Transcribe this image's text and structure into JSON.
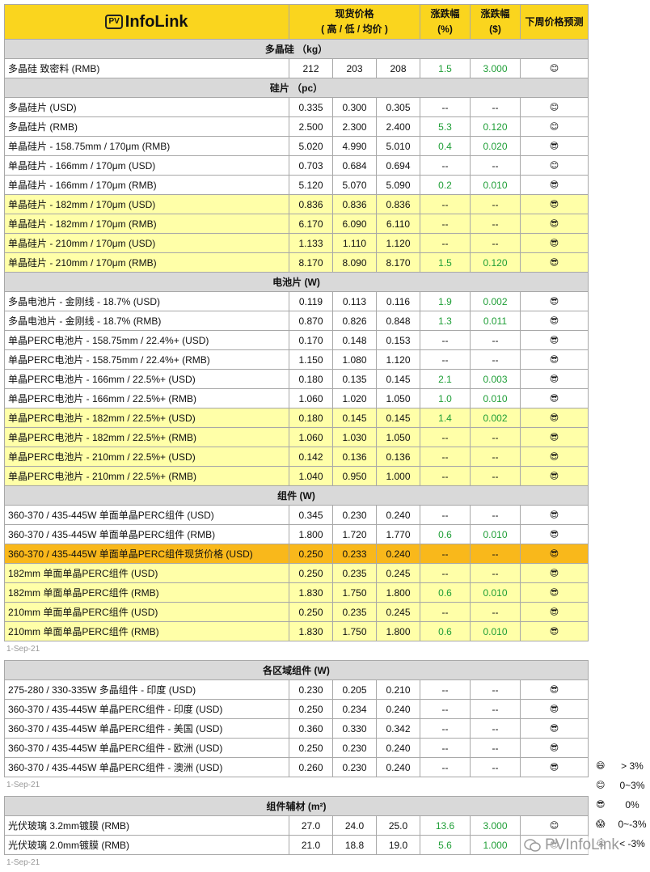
{
  "header": {
    "logo_pv": "PV",
    "logo_text": "InfoLink",
    "price": "现货价格",
    "price_sub": "( 高 / 低 / 均价 )",
    "pct": "涨跌幅",
    "pct_unit": "(%)",
    "abs": "涨跌幅",
    "abs_unit": "($)",
    "forecast": "下周价格预测"
  },
  "colors": {
    "yellow": "#ffffa8",
    "orange": "#f9b81b"
  },
  "tables": [
    {
      "sections": [
        {
          "title": "多晶硅 （kg）",
          "rows": [
            {
              "cells": [
                "多晶硅 致密料 (RMB)",
                "212",
                "203",
                "208",
                "1.5",
                "3.000",
                "😊"
              ]
            }
          ]
        },
        {
          "title": "硅片 （pc）",
          "rows": [
            {
              "cells": [
                "多晶硅片 (USD)",
                "0.335",
                "0.300",
                "0.305",
                "--",
                "--",
                "😊"
              ]
            },
            {
              "cells": [
                "多晶硅片 (RMB)",
                "2.500",
                "2.300",
                "2.400",
                "5.3",
                "0.120",
                "😊"
              ]
            },
            {
              "cells": [
                "单晶硅片 - 158.75mm / 170μm (RMB)",
                "5.020",
                "4.990",
                "5.010",
                "0.4",
                "0.020",
                "😎"
              ]
            },
            {
              "cells": [
                "单晶硅片 - 166mm / 170μm (USD)",
                "0.703",
                "0.684",
                "0.694",
                "--",
                "--",
                "😊"
              ]
            },
            {
              "cells": [
                "单晶硅片 - 166mm / 170μm (RMB)",
                "5.120",
                "5.070",
                "5.090",
                "0.2",
                "0.010",
                "😎"
              ]
            },
            {
              "cells": [
                "单晶硅片 - 182mm / 170μm (USD)",
                "0.836",
                "0.836",
                "0.836",
                "--",
                "--",
                "😎"
              ],
              "highlight": "yellow"
            },
            {
              "cells": [
                "单晶硅片 - 182mm / 170μm (RMB)",
                "6.170",
                "6.090",
                "6.110",
                "--",
                "--",
                "😎"
              ],
              "highlight": "yellow"
            },
            {
              "cells": [
                "单晶硅片 - 210mm / 170μm (USD)",
                "1.133",
                "1.110",
                "1.120",
                "--",
                "--",
                "😎"
              ],
              "highlight": "yellow"
            },
            {
              "cells": [
                "单晶硅片 - 210mm / 170μm (RMB)",
                "8.170",
                "8.090",
                "8.170",
                "1.5",
                "0.120",
                "😎"
              ],
              "highlight": "yellow"
            }
          ]
        },
        {
          "title": "电池片 (W)",
          "rows": [
            {
              "cells": [
                "多晶电池片 - 金刚线 - 18.7% (USD)",
                "0.119",
                "0.113",
                "0.116",
                "1.9",
                "0.002",
                "😎"
              ]
            },
            {
              "cells": [
                "多晶电池片 - 金刚线 - 18.7% (RMB)",
                "0.870",
                "0.826",
                "0.848",
                "1.3",
                "0.011",
                "😎"
              ]
            },
            {
              "cells": [
                "单晶PERC电池片 - 158.75mm / 22.4%+ (USD)",
                "0.170",
                "0.148",
                "0.153",
                "--",
                "--",
                "😎"
              ]
            },
            {
              "cells": [
                "单晶PERC电池片 - 158.75mm / 22.4%+ (RMB)",
                "1.150",
                "1.080",
                "1.120",
                "--",
                "--",
                "😎"
              ]
            },
            {
              "cells": [
                "单晶PERC电池片 - 166mm / 22.5%+ (USD)",
                "0.180",
                "0.135",
                "0.145",
                "2.1",
                "0.003",
                "😎"
              ]
            },
            {
              "cells": [
                "单晶PERC电池片 - 166mm / 22.5%+ (RMB)",
                "1.060",
                "1.020",
                "1.050",
                "1.0",
                "0.010",
                "😎"
              ]
            },
            {
              "cells": [
                "单晶PERC电池片 - 182mm / 22.5%+ (USD)",
                "0.180",
                "0.145",
                "0.145",
                "1.4",
                "0.002",
                "😎"
              ],
              "highlight": "yellow"
            },
            {
              "cells": [
                "单晶PERC电池片 - 182mm / 22.5%+ (RMB)",
                "1.060",
                "1.030",
                "1.050",
                "--",
                "--",
                "😎"
              ],
              "highlight": "yellow"
            },
            {
              "cells": [
                "单晶PERC电池片 - 210mm / 22.5%+ (USD)",
                "0.142",
                "0.136",
                "0.136",
                "--",
                "--",
                "😎"
              ],
              "highlight": "yellow"
            },
            {
              "cells": [
                "单晶PERC电池片 - 210mm / 22.5%+ (RMB)",
                "1.040",
                "0.950",
                "1.000",
                "--",
                "--",
                "😎"
              ],
              "highlight": "yellow"
            }
          ]
        },
        {
          "title": "组件 (W)",
          "rows": [
            {
              "cells": [
                "360-370 / 435-445W  单面单晶PERC组件 (USD)",
                "0.345",
                "0.230",
                "0.240",
                "--",
                "--",
                "😎"
              ]
            },
            {
              "cells": [
                "360-370 / 435-445W  单面单晶PERC组件 (RMB)",
                "1.800",
                "1.720",
                "1.770",
                "0.6",
                "0.010",
                "😎"
              ]
            },
            {
              "cells": [
                "360-370 / 435-445W  单面单晶PERC组件现货价格 (USD)",
                "0.250",
                "0.233",
                "0.240",
                "--",
                "--",
                "😎"
              ],
              "highlight": "orange"
            },
            {
              "cells": [
                "182mm 单面单晶PERC组件 (USD)",
                "0.250",
                "0.235",
                "0.245",
                "--",
                "--",
                "😎"
              ],
              "highlight": "yellow"
            },
            {
              "cells": [
                "182mm 单面单晶PERC组件 (RMB)",
                "1.830",
                "1.750",
                "1.800",
                "0.6",
                "0.010",
                "😎"
              ],
              "highlight": "yellow"
            },
            {
              "cells": [
                "210mm 单面单晶PERC组件 (USD)",
                "0.250",
                "0.235",
                "0.245",
                "--",
                "--",
                "😎"
              ],
              "highlight": "yellow"
            },
            {
              "cells": [
                "210mm 单面单晶PERC组件 (RMB)",
                "1.830",
                "1.750",
                "1.800",
                "0.6",
                "0.010",
                "😎"
              ],
              "highlight": "yellow"
            }
          ]
        }
      ],
      "date": "1-Sep-21"
    },
    {
      "sections": [
        {
          "title": "各区域组件 (W)",
          "rows": [
            {
              "cells": [
                "275-280 / 330-335W   多晶组件 - 印度 (USD)",
                "0.230",
                "0.205",
                "0.210",
                "--",
                "--",
                "😎"
              ]
            },
            {
              "cells": [
                "360-370 / 435-445W 单晶PERC组件 - 印度 (USD)",
                "0.250",
                "0.234",
                "0.240",
                "--",
                "--",
                "😎"
              ]
            },
            {
              "cells": [
                "360-370 / 435-445W 单晶PERC组件 - 美国 (USD)",
                "0.360",
                "0.330",
                "0.342",
                "--",
                "--",
                "😎"
              ]
            },
            {
              "cells": [
                "360-370 / 435-445W 单晶PERC组件 - 欧洲 (USD)",
                "0.250",
                "0.230",
                "0.240",
                "--",
                "--",
                "😎"
              ]
            },
            {
              "cells": [
                "360-370 / 435-445W 单晶PERC组件 - 澳洲 (USD)",
                "0.260",
                "0.230",
                "0.240",
                "--",
                "--",
                "😎"
              ]
            }
          ]
        }
      ],
      "date": "1-Sep-21"
    },
    {
      "sections": [
        {
          "title": "组件辅材 (m²)",
          "rows": [
            {
              "cells": [
                "光伏玻璃 3.2mm镀膜 (RMB)",
                "27.0",
                "24.0",
                "25.0",
                "13.6",
                "3.000",
                "😊"
              ]
            },
            {
              "cells": [
                "光伏玻璃 2.0mm镀膜 (RMB)",
                "21.0",
                "18.8",
                "19.0",
                "5.6",
                "1.000",
                "😎"
              ]
            }
          ]
        }
      ],
      "date": "1-Sep-21"
    }
  ],
  "legend": [
    {
      "icon": "😄",
      "label": "> 3%"
    },
    {
      "icon": "😊",
      "label": "0~3%"
    },
    {
      "icon": "😎",
      "label": "0%"
    },
    {
      "icon": "😱",
      "label": "0~-3%"
    },
    {
      "icon": "😭",
      "label": "< -3%"
    }
  ],
  "watermark": "PVInfoLink"
}
